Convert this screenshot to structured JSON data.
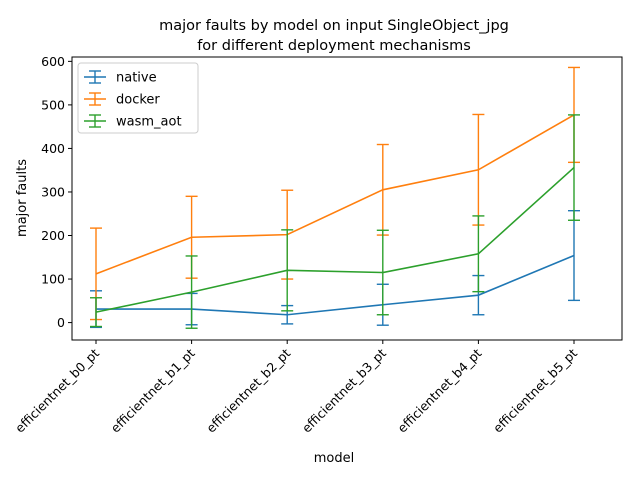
{
  "chart_data": {
    "type": "line",
    "title_lines": [
      "major faults by model on input SingleObject_jpg",
      "for different deployment mechanisms"
    ],
    "xlabel": "model",
    "ylabel": "major faults",
    "categories": [
      "efficientnet_b0_pt",
      "efficientnet_b1_pt",
      "efficientnet_b2_pt",
      "efficientnet_b3_pt",
      "efficientnet_b4_pt",
      "efficientnet_b5_pt"
    ],
    "ylim": [
      -40,
      610
    ],
    "yticks": [
      0,
      100,
      200,
      300,
      400,
      500,
      600
    ],
    "legend_position": "upper-left",
    "grid": false,
    "series": [
      {
        "name": "native",
        "color": "#1f77b4",
        "values": [
          31,
          31,
          18,
          41,
          63,
          154
        ],
        "errors": [
          42,
          36,
          21,
          47,
          45,
          103
        ]
      },
      {
        "name": "docker",
        "color": "#ff7f0e",
        "values": [
          112,
          196,
          202,
          305,
          351,
          477
        ],
        "errors": [
          105,
          94,
          102,
          104,
          127,
          109
        ]
      },
      {
        "name": "wasm_aot",
        "color": "#2ca02c",
        "values": [
          24,
          70,
          120,
          115,
          158,
          356
        ],
        "errors": [
          33,
          83,
          93,
          97,
          87,
          121
        ]
      }
    ]
  }
}
